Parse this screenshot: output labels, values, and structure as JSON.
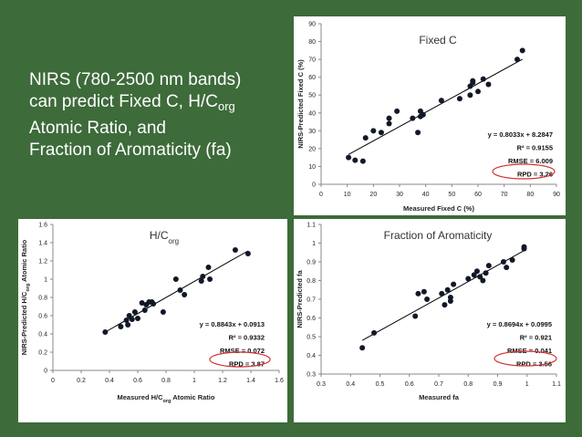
{
  "slide": {
    "background": "#3d6b3a",
    "title_parts": [
      "NIRS (780-2500 nm bands)",
      "can predict Fixed C, H/C",
      "org",
      "Atomic Ratio, and",
      "Fraction of Aromaticity (fa)"
    ]
  },
  "chart_data": [
    {
      "type": "scatter",
      "title": "Fixed C",
      "xlabel": "Measured Fixed C (%)",
      "ylabel": "NIRS-Predicted Fixed C (%)",
      "xlim": [
        0,
        90
      ],
      "ylim": [
        0,
        90
      ],
      "x_ticks": [
        "0",
        "10",
        "20",
        "30",
        "40",
        "50",
        "60",
        "70",
        "80",
        "90"
      ],
      "y_ticks": [
        "0",
        "10",
        "20",
        "30",
        "40",
        "50",
        "60",
        "70",
        "80",
        "90"
      ],
      "points": [
        [
          10.5,
          15
        ],
        [
          13,
          13.5
        ],
        [
          16,
          13
        ],
        [
          17,
          26
        ],
        [
          20,
          30
        ],
        [
          23,
          29
        ],
        [
          26,
          34
        ],
        [
          26,
          37
        ],
        [
          29,
          41
        ],
        [
          35,
          37
        ],
        [
          37,
          29
        ],
        [
          38,
          38
        ],
        [
          38,
          41
        ],
        [
          39,
          39
        ],
        [
          46,
          47
        ],
        [
          53,
          48
        ],
        [
          57,
          50
        ],
        [
          57,
          55
        ],
        [
          58,
          58
        ],
        [
          58,
          57
        ],
        [
          60,
          52
        ],
        [
          62,
          59
        ],
        [
          64,
          56
        ],
        [
          75,
          70
        ],
        [
          77,
          75
        ]
      ],
      "trendline": [
        [
          10.5,
          16.7
        ],
        [
          77,
          70.1
        ]
      ],
      "annotations": [
        "y = 0.8033x + 8.2847",
        "R² = 0.9155",
        "RMSE = 6.009",
        "RPD = 3.26"
      ],
      "grid": false
    },
    {
      "type": "scatter",
      "title_parts": [
        "H/C",
        "org"
      ],
      "xlabel_parts": [
        "Measured H/C",
        "org",
        " Atomic Ratio"
      ],
      "ylabel_parts": [
        "NIRS-Predicted H/C",
        "org",
        " Atomic Ratio"
      ],
      "xlim": [
        0,
        1.6
      ],
      "ylim": [
        0,
        1.6
      ],
      "x_ticks": [
        "0",
        "0.2",
        "0.4",
        "0.6",
        "0.8",
        "1",
        "1.2",
        "1.4",
        "1.6"
      ],
      "y_ticks": [
        "0",
        "0.2",
        "0.4",
        "0.6",
        "0.8",
        "1",
        "1.2",
        "1.4",
        "1.6"
      ],
      "points": [
        [
          0.37,
          0.42
        ],
        [
          0.48,
          0.48
        ],
        [
          0.52,
          0.55
        ],
        [
          0.53,
          0.5
        ],
        [
          0.54,
          0.6
        ],
        [
          0.56,
          0.56
        ],
        [
          0.58,
          0.64
        ],
        [
          0.6,
          0.57
        ],
        [
          0.63,
          0.74
        ],
        [
          0.65,
          0.66
        ],
        [
          0.66,
          0.72
        ],
        [
          0.68,
          0.75
        ],
        [
          0.7,
          0.75
        ],
        [
          0.71,
          0.73
        ],
        [
          0.78,
          0.64
        ],
        [
          0.87,
          1.0
        ],
        [
          0.9,
          0.88
        ],
        [
          0.93,
          0.83
        ],
        [
          1.05,
          0.98
        ],
        [
          1.06,
          1.03
        ],
        [
          1.1,
          1.13
        ],
        [
          1.11,
          1.0
        ],
        [
          1.29,
          1.32
        ],
        [
          1.38,
          1.28
        ]
      ],
      "trendline": [
        [
          0.37,
          0.42
        ],
        [
          1.38,
          1.31
        ]
      ],
      "annotations": [
        "y = 0.8843x + 0.0913",
        "R² = 0.9332",
        "RMSE = 0.072",
        "RPD = 3.87"
      ],
      "grid": false
    },
    {
      "type": "scatter",
      "title": "Fraction of Aromaticity",
      "xlabel": "Measured fa",
      "ylabel": "NIRS-Predicted fa",
      "xlim": [
        0.3,
        1.1
      ],
      "ylim": [
        0.3,
        1.1
      ],
      "x_ticks": [
        "0.3",
        "0.4",
        "0.5",
        "0.6",
        "0.7",
        "0.8",
        "0.9",
        "1",
        "1.1"
      ],
      "y_ticks": [
        "0.3",
        "0.4",
        "0.5",
        "0.6",
        "0.7",
        "0.8",
        "0.9",
        "1",
        "1.1"
      ],
      "points": [
        [
          0.44,
          0.44
        ],
        [
          0.48,
          0.52
        ],
        [
          0.62,
          0.61
        ],
        [
          0.63,
          0.73
        ],
        [
          0.65,
          0.74
        ],
        [
          0.66,
          0.7
        ],
        [
          0.71,
          0.73
        ],
        [
          0.72,
          0.67
        ],
        [
          0.73,
          0.75
        ],
        [
          0.74,
          0.69
        ],
        [
          0.74,
          0.71
        ],
        [
          0.75,
          0.78
        ],
        [
          0.8,
          0.81
        ],
        [
          0.82,
          0.83
        ],
        [
          0.83,
          0.85
        ],
        [
          0.84,
          0.82
        ],
        [
          0.85,
          0.8
        ],
        [
          0.86,
          0.84
        ],
        [
          0.87,
          0.88
        ],
        [
          0.92,
          0.9
        ],
        [
          0.93,
          0.87
        ],
        [
          0.95,
          0.91
        ],
        [
          0.99,
          0.97
        ],
        [
          0.99,
          0.98
        ]
      ],
      "trendline": [
        [
          0.44,
          0.48
        ],
        [
          0.99,
          0.96
        ]
      ],
      "annotations": [
        "y = 0.8694x + 0.0995",
        "R² = 0.921",
        "RMSE = 0.041",
        "RPD = 3.56"
      ],
      "grid": false
    }
  ]
}
